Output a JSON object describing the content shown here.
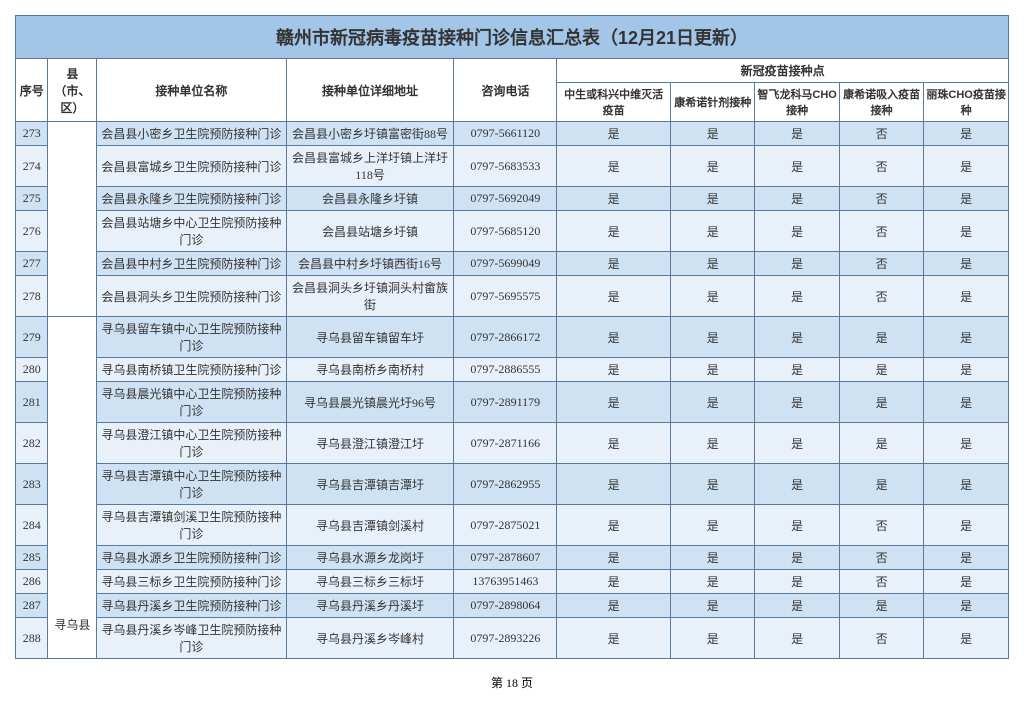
{
  "title": "赣州市新冠病毒疫苗接种门诊信息汇总表（12月21日更新）",
  "headers": {
    "seq": "序号",
    "county": "县（市、区）",
    "unit": "接种单位名称",
    "address": "接种单位详细地址",
    "phone": "咨询电话",
    "vaccine_group": "新冠疫苗接种点",
    "v1": "中生或科兴中维灭活疫苗",
    "v2": "康希诺针剂接种",
    "v3": "智飞龙科马CHO接种",
    "v4": "康希诺吸入疫苗接种",
    "v5": "丽珠CHO疫苗接种"
  },
  "county1": "",
  "county2": "寻乌县",
  "rows": [
    {
      "n": "273",
      "unit": "会昌县小密乡卫生院预防接种门诊",
      "addr": "会昌县小密乡圩镇富密街88号",
      "tel": "0797-5661120",
      "v1": "是",
      "v2": "是",
      "v3": "是",
      "v4": "否",
      "v5": "是"
    },
    {
      "n": "274",
      "unit": "会昌县富城乡卫生院预防接种门诊",
      "addr": "会昌县富城乡上洋圩镇上洋圩118号",
      "tel": "0797-5683533",
      "v1": "是",
      "v2": "是",
      "v3": "是",
      "v4": "否",
      "v5": "是"
    },
    {
      "n": "275",
      "unit": "会昌县永隆乡卫生院预防接种门诊",
      "addr": "会昌县永隆乡圩镇",
      "tel": "0797-5692049",
      "v1": "是",
      "v2": "是",
      "v3": "是",
      "v4": "否",
      "v5": "是"
    },
    {
      "n": "276",
      "unit": "会昌县站塘乡中心卫生院预防接种门诊",
      "addr": "会昌县站塘乡圩镇",
      "tel": "0797-5685120",
      "v1": "是",
      "v2": "是",
      "v3": "是",
      "v4": "否",
      "v5": "是"
    },
    {
      "n": "277",
      "unit": "会昌县中村乡卫生院预防接种门诊",
      "addr": "会昌县中村乡圩镇西街16号",
      "tel": "0797-5699049",
      "v1": "是",
      "v2": "是",
      "v3": "是",
      "v4": "否",
      "v5": "是"
    },
    {
      "n": "278",
      "unit": "会昌县洞头乡卫生院预防接种门诊",
      "addr": "会昌县洞头乡圩镇洞头村畲族街",
      "tel": "0797-5695575",
      "v1": "是",
      "v2": "是",
      "v3": "是",
      "v4": "否",
      "v5": "是"
    },
    {
      "n": "279",
      "unit": "寻乌县留车镇中心卫生院预防接种门诊",
      "addr": "寻乌县留车镇留车圩",
      "tel": "0797-2866172",
      "v1": "是",
      "v2": "是",
      "v3": "是",
      "v4": "是",
      "v5": "是"
    },
    {
      "n": "280",
      "unit": "寻乌县南桥镇卫生院预防接种门诊",
      "addr": "寻乌县南桥乡南桥村",
      "tel": "0797-2886555",
      "v1": "是",
      "v2": "是",
      "v3": "是",
      "v4": "是",
      "v5": "是"
    },
    {
      "n": "281",
      "unit": "寻乌县晨光镇中心卫生院预防接种门诊",
      "addr": "寻乌县晨光镇晨光圩96号",
      "tel": "0797-2891179",
      "v1": "是",
      "v2": "是",
      "v3": "是",
      "v4": "是",
      "v5": "是"
    },
    {
      "n": "282",
      "unit": "寻乌县澄江镇中心卫生院预防接种门诊",
      "addr": "寻乌县澄江镇澄江圩",
      "tel": "0797-2871166",
      "v1": "是",
      "v2": "是",
      "v3": "是",
      "v4": "是",
      "v5": "是"
    },
    {
      "n": "283",
      "unit": "寻乌县吉潭镇中心卫生院预防接种门诊",
      "addr": "寻乌县吉潭镇吉潭圩",
      "tel": "0797-2862955",
      "v1": "是",
      "v2": "是",
      "v3": "是",
      "v4": "是",
      "v5": "是"
    },
    {
      "n": "284",
      "unit": "寻乌县吉潭镇剑溪卫生院预防接种门诊",
      "addr": "寻乌县吉潭镇剑溪村",
      "tel": "0797-2875021",
      "v1": "是",
      "v2": "是",
      "v3": "是",
      "v4": "否",
      "v5": "是"
    },
    {
      "n": "285",
      "unit": "寻乌县水源乡卫生院预防接种门诊",
      "addr": "寻乌县水源乡龙岗圩",
      "tel": "0797-2878607",
      "v1": "是",
      "v2": "是",
      "v3": "是",
      "v4": "否",
      "v5": "是"
    },
    {
      "n": "286",
      "unit": "寻乌县三标乡卫生院预防接种门诊",
      "addr": "寻乌县三标乡三标圩",
      "tel": "13763951463",
      "v1": "是",
      "v2": "是",
      "v3": "是",
      "v4": "否",
      "v5": "是"
    },
    {
      "n": "287",
      "unit": "寻乌县丹溪乡卫生院预防接种门诊",
      "addr": "寻乌县丹溪乡丹溪圩",
      "tel": "0797-2898064",
      "v1": "是",
      "v2": "是",
      "v3": "是",
      "v4": "是",
      "v5": "是"
    },
    {
      "n": "288",
      "unit": "寻乌县丹溪乡岑峰卫生院预防接种门诊",
      "addr": "寻乌县丹溪乡岑峰村",
      "tel": "0797-2893226",
      "v1": "是",
      "v2": "是",
      "v3": "是",
      "v4": "否",
      "v5": "是"
    }
  ],
  "page": "第 18 页"
}
